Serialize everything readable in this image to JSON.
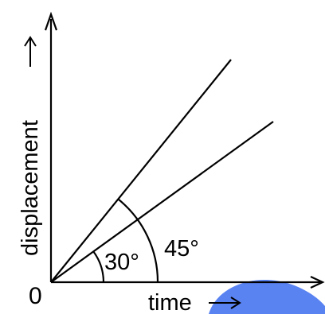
{
  "diagram": {
    "origin_label": "0",
    "x_axis_label": "time",
    "y_axis_label": "displacement",
    "angle_small_label": "30°",
    "angle_large_label": "45°",
    "line_angles_deg": [
      45,
      30
    ]
  },
  "colors": {
    "ink": "#000000",
    "background": "#ffffff",
    "watermark": "#3d6df0"
  }
}
